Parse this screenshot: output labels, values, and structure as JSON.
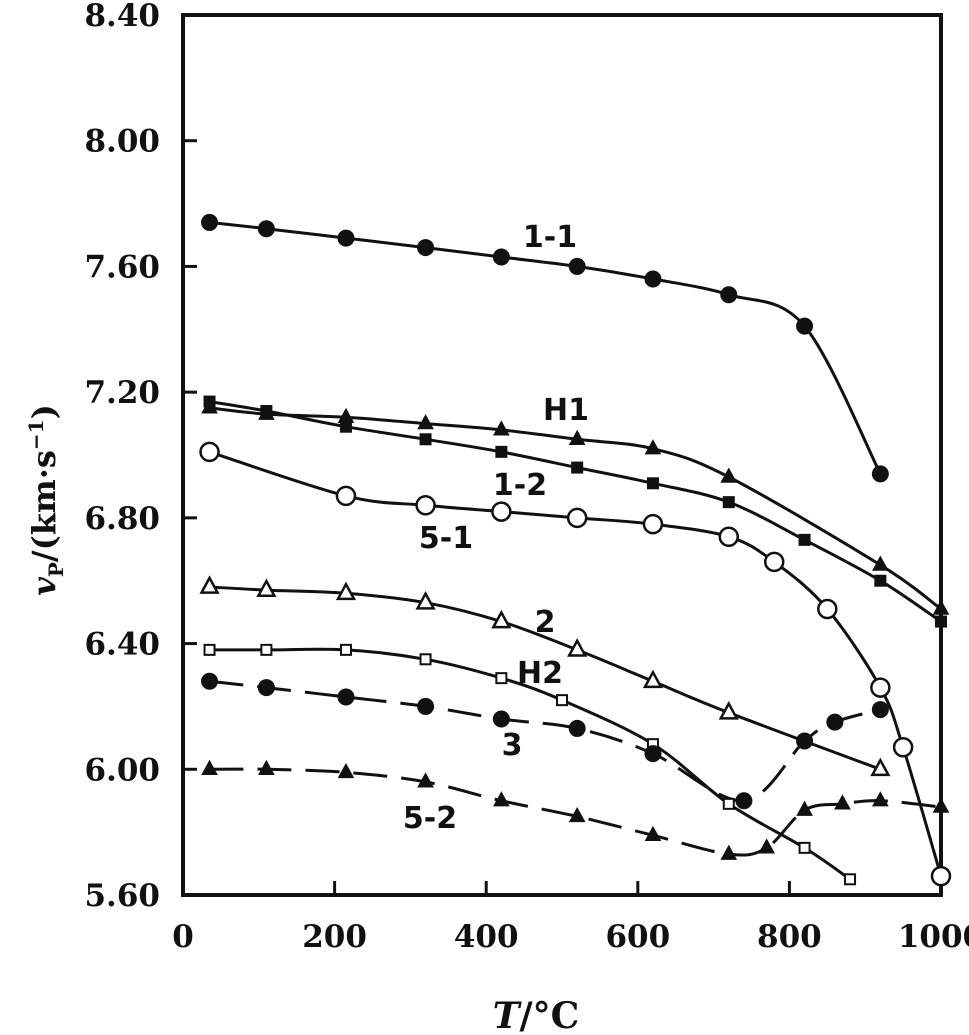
{
  "chart_data": {
    "type": "line",
    "xlabel": {
      "var": "T",
      "unit": "/°C"
    },
    "ylabel": {
      "var": "v",
      "sub": "P",
      "unit": "/(km·s",
      "sup": "−1",
      "close": ")"
    },
    "xlim": [
      0,
      1000
    ],
    "ylim": [
      5.6,
      8.4
    ],
    "x_ticks": [
      "0",
      "200",
      "400",
      "600",
      "800",
      "1000"
    ],
    "y_ticks": [
      "5.60",
      "6.00",
      "6.40",
      "6.80",
      "7.20",
      "7.60",
      "8.00",
      "8.40"
    ],
    "series": [
      {
        "name": "1-1",
        "marker": "filled-circle",
        "dash": "solid",
        "x": [
          35,
          110,
          215,
          320,
          420,
          520,
          620,
          720,
          820,
          920
        ],
        "y": [
          7.74,
          7.72,
          7.69,
          7.66,
          7.63,
          7.6,
          7.56,
          7.51,
          7.41,
          6.94
        ]
      },
      {
        "name": "H1",
        "marker": "filled-triangle",
        "dash": "solid",
        "x": [
          35,
          110,
          215,
          320,
          420,
          520,
          620,
          720,
          820,
          920,
          1000
        ],
        "y": [
          7.15,
          7.13,
          7.12,
          7.1,
          7.08,
          7.05,
          7.02,
          6.93,
          null,
          6.65,
          6.51
        ]
      },
      {
        "name": "1-2",
        "marker": "filled-square",
        "dash": "solid",
        "x": [
          35,
          110,
          215,
          320,
          420,
          520,
          620,
          720,
          820,
          920,
          1000
        ],
        "y": [
          7.17,
          7.14,
          7.09,
          7.05,
          7.01,
          6.96,
          6.91,
          6.85,
          6.73,
          6.6,
          6.47
        ]
      },
      {
        "name": "5-1",
        "marker": "open-circle",
        "dash": "solid",
        "x": [
          35,
          215,
          320,
          420,
          520,
          620,
          720,
          780,
          850,
          920,
          950,
          1000
        ],
        "y": [
          7.01,
          6.87,
          6.84,
          6.82,
          6.8,
          6.78,
          6.74,
          6.66,
          6.51,
          6.26,
          6.07,
          5.66
        ]
      },
      {
        "name": "2",
        "marker": "open-triangle",
        "dash": "solid",
        "x": [
          35,
          110,
          215,
          320,
          420,
          520,
          620,
          720,
          920
        ],
        "y": [
          6.58,
          6.57,
          6.56,
          6.53,
          6.47,
          6.38,
          6.28,
          6.18,
          6.0
        ]
      },
      {
        "name": "H2",
        "marker": "open-square",
        "dash": "solid",
        "x": [
          35,
          110,
          215,
          320,
          420,
          500,
          620,
          720,
          820,
          880
        ],
        "y": [
          6.38,
          6.38,
          6.38,
          6.35,
          6.29,
          6.22,
          6.08,
          5.89,
          5.75,
          5.65
        ]
      },
      {
        "name": "3",
        "marker": "filled-circle",
        "dash": "dashed",
        "x": [
          35,
          110,
          215,
          320,
          420,
          520,
          620,
          740,
          820,
          860,
          920
        ],
        "y": [
          6.28,
          6.26,
          6.23,
          6.2,
          6.16,
          6.13,
          6.05,
          5.9,
          6.09,
          6.15,
          6.19
        ]
      },
      {
        "name": "5-2",
        "marker": "filled-triangle",
        "dash": "dashed",
        "x": [
          35,
          110,
          215,
          320,
          420,
          520,
          620,
          720,
          770,
          820,
          870,
          920,
          1000
        ],
        "y": [
          6.0,
          6.0,
          5.99,
          5.96,
          5.9,
          5.85,
          5.79,
          5.73,
          5.75,
          5.87,
          5.89,
          5.9,
          5.88
        ]
      }
    ]
  }
}
